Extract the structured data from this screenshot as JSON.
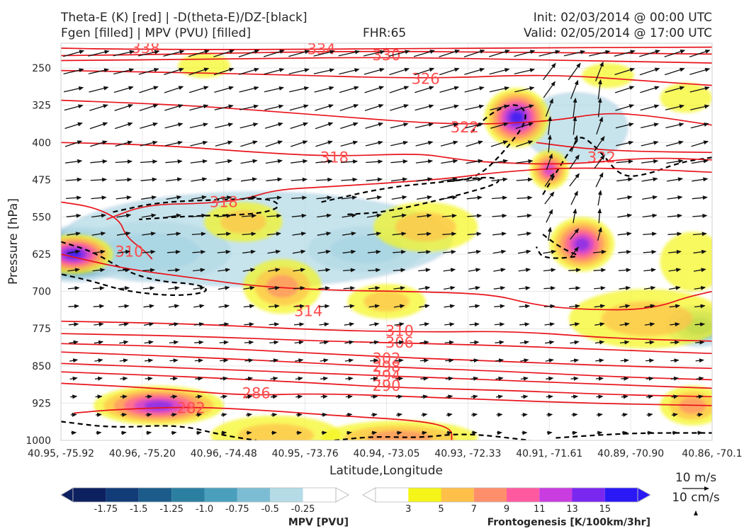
{
  "header": {
    "title_left_line1": "Theta-E (K) [red] | -D(theta-E)/DZ-[black]",
    "title_left_line2": "Fgen [filled] | MPV (PVU) [filled]",
    "fhr": "FHR:65",
    "init": "Init: 02/03/2014 @ 00:00 UTC",
    "valid": "Valid: 02/05/2014 @ 17:00 UTC"
  },
  "colors": {
    "theta_e": "#e8141c",
    "dthetae_dz": "#000000",
    "mpv_outline": "#9fb5d6",
    "mpv_fill": [
      "#0d2060",
      "#123c78",
      "#1b5c8a",
      "#2b7fa0",
      "#4a9fbc",
      "#7dbdd3",
      "#b4dbe6",
      "#ffffff"
    ],
    "fgen_fill": [
      "#ffffff",
      "#f5f519",
      "#ffc04a",
      "#ff8f6a",
      "#ff5aa0",
      "#c83ce0",
      "#7a28f0",
      "#2a18f5"
    ]
  },
  "chart_data": {
    "type": "cross-section",
    "xlabel": "Latitude,Longitude",
    "ylabel": "Pressure [hPa]",
    "x_ticks": [
      "40.95, -75.92",
      "40.96, -75.20",
      "40.96, -74.48",
      "40.95, -73.76",
      "40.94, -73.05",
      "40.93, -72.33",
      "40.91, -71.61",
      "40.89, -70.90",
      "40.86, -70.1"
    ],
    "y_ticks": [
      250,
      325,
      400,
      475,
      550,
      625,
      700,
      775,
      850,
      925,
      1000
    ],
    "ylim": [
      1000,
      200
    ],
    "xlim": [
      0,
      1
    ],
    "theta_e_contours": [
      {
        "label": "338",
        "pts": [
          [
            0,
            210
          ],
          [
            0.08,
            212
          ],
          [
            0.3,
            213
          ],
          [
            0.6,
            210
          ],
          [
            1,
            208
          ]
        ],
        "lab": [
          0.13,
          210
        ]
      },
      {
        "label": "334",
        "pts": [
          [
            0,
            225
          ],
          [
            0.2,
            222
          ],
          [
            0.42,
            216
          ],
          [
            0.7,
            218
          ],
          [
            1,
            222
          ]
        ],
        "lab": [
          0.4,
          212
        ]
      },
      {
        "label": "330",
        "pts": [
          [
            0,
            235
          ],
          [
            0.25,
            232
          ],
          [
            0.5,
            228
          ],
          [
            0.75,
            234
          ],
          [
            1,
            240
          ]
        ],
        "lab": [
          0.5,
          224
        ]
      },
      {
        "label": "326",
        "pts": [
          [
            0,
            255
          ],
          [
            0.3,
            262
          ],
          [
            0.56,
            272
          ],
          [
            0.75,
            262
          ],
          [
            0.92,
            278
          ],
          [
            1,
            285
          ]
        ],
        "lab": [
          0.56,
          272
        ]
      },
      {
        "label": "322",
        "pts": [
          [
            0,
            315
          ],
          [
            0.2,
            325
          ],
          [
            0.4,
            345
          ],
          [
            0.6,
            365
          ],
          [
            0.75,
            358
          ],
          [
            0.83,
            340
          ],
          [
            0.9,
            345
          ],
          [
            1,
            365
          ]
        ],
        "lab": [
          0.62,
          370
        ]
      },
      {
        "label": "322",
        "pts": [
          [
            0.73,
            400
          ],
          [
            0.8,
            412
          ],
          [
            0.88,
            418
          ],
          [
            1,
            420
          ]
        ],
        "lab": [
          0.83,
          430
        ]
      },
      {
        "label": "318",
        "pts": [
          [
            0,
            400
          ],
          [
            0.15,
            405
          ],
          [
            0.3,
            420
          ],
          [
            0.42,
            428
          ],
          [
            0.55,
            422
          ],
          [
            0.6,
            432
          ],
          [
            0.65,
            440
          ],
          [
            0.78,
            445
          ],
          [
            0.9,
            430
          ],
          [
            1,
            435
          ]
        ],
        "lab": [
          0.42,
          430
        ]
      },
      {
        "label": "318",
        "pts": [
          [
            0.07,
            555
          ],
          [
            0.13,
            525
          ],
          [
            0.22,
            523
          ],
          [
            0.28,
            515
          ],
          [
            0.33,
            495
          ],
          [
            0.4,
            490
          ],
          [
            0.52,
            480
          ],
          [
            0.6,
            472
          ],
          [
            0.67,
            460
          ],
          [
            0.78,
            450
          ],
          [
            0.92,
            455
          ],
          [
            1,
            460
          ]
        ],
        "lab": [
          0.25,
          520
        ]
      },
      {
        "label": "310",
        "pts": [
          [
            0,
            520
          ],
          [
            0.05,
            530
          ],
          [
            0.09,
            555
          ],
          [
            0.1,
            590
          ],
          [
            0.13,
            620
          ],
          [
            0.14,
            635
          ]
        ],
        "lab": [
          0.105,
          620
        ]
      },
      {
        "label": "314",
        "pts": [
          [
            0,
            625
          ],
          [
            0.1,
            655
          ],
          [
            0.2,
            672
          ],
          [
            0.3,
            690
          ],
          [
            0.42,
            698
          ],
          [
            0.53,
            700
          ],
          [
            0.66,
            705
          ],
          [
            0.72,
            725
          ],
          [
            0.78,
            735
          ],
          [
            0.87,
            738
          ],
          [
            0.92,
            730
          ],
          [
            0.96,
            712
          ],
          [
            1,
            700
          ]
        ],
        "lab": [
          0.38,
          740
        ]
      },
      {
        "label": "310",
        "pts": [
          [
            0,
            760
          ],
          [
            0.2,
            765
          ],
          [
            0.4,
            778
          ],
          [
            0.56,
            782
          ],
          [
            0.7,
            780
          ],
          [
            0.85,
            795
          ],
          [
            1,
            800
          ]
        ],
        "lab": [
          0.52,
          780
        ]
      },
      {
        "label": "306",
        "pts": [
          [
            0,
            785
          ],
          [
            0.2,
            790
          ],
          [
            0.4,
            800
          ],
          [
            0.56,
            805
          ],
          [
            0.7,
            810
          ],
          [
            0.85,
            818
          ],
          [
            1,
            825
          ]
        ],
        "lab": [
          0.52,
          803
        ]
      },
      {
        "label": "302",
        "pts": [
          [
            0,
            805
          ],
          [
            0.2,
            812
          ],
          [
            0.4,
            825
          ],
          [
            0.52,
            833
          ],
          [
            0.7,
            842
          ],
          [
            0.85,
            850
          ],
          [
            1,
            855
          ]
        ],
        "lab": [
          0.5,
          835
        ]
      },
      {
        "label": "298",
        "pts": [
          [
            0,
            822
          ],
          [
            0.2,
            832
          ],
          [
            0.4,
            845
          ],
          [
            0.5,
            852
          ],
          [
            0.7,
            862
          ],
          [
            0.85,
            872
          ],
          [
            1,
            878
          ]
        ],
        "lab": [
          0.5,
          852
        ]
      },
      {
        "label": "294",
        "pts": [
          [
            0,
            845
          ],
          [
            0.2,
            855
          ],
          [
            0.4,
            865
          ],
          [
            0.5,
            870
          ],
          [
            0.7,
            880
          ],
          [
            0.85,
            888
          ],
          [
            1,
            895
          ]
        ],
        "lab": [
          0.5,
          870
        ]
      },
      {
        "label": "290",
        "pts": [
          [
            0,
            862
          ],
          [
            0.2,
            872
          ],
          [
            0.4,
            885
          ],
          [
            0.5,
            893
          ],
          [
            0.7,
            900
          ],
          [
            0.85,
            908
          ],
          [
            1,
            912
          ]
        ],
        "lab": [
          0.5,
          890
        ]
      },
      {
        "label": "286",
        "pts": [
          [
            0,
            885
          ],
          [
            0.15,
            895
          ],
          [
            0.28,
            910
          ],
          [
            0.4,
            905
          ],
          [
            0.6,
            915
          ],
          [
            0.8,
            925
          ],
          [
            1,
            930
          ]
        ],
        "lab": [
          0.3,
          905
        ]
      },
      {
        "label": "282",
        "pts": [
          [
            0.02,
            945
          ],
          [
            0.08,
            938
          ],
          [
            0.2,
            932
          ],
          [
            0.32,
            940
          ],
          [
            0.42,
            950
          ],
          [
            0.55,
            960
          ],
          [
            0.6,
            975
          ],
          [
            0.6,
            1000
          ]
        ],
        "lab": [
          0.2,
          935
        ]
      }
    ],
    "dthetae_dz_contours": [
      [
        [
          0.08,
          540
        ],
        [
          0.15,
          520
        ],
        [
          0.25,
          515
        ],
        [
          0.32,
          512
        ],
        [
          0.34,
          530
        ],
        [
          0.3,
          545
        ],
        [
          0.2,
          548
        ],
        [
          0.12,
          555
        ]
      ],
      [
        [
          0.4,
          520
        ],
        [
          0.5,
          490
        ],
        [
          0.6,
          478
        ],
        [
          0.66,
          468
        ],
        [
          0.68,
          480
        ],
        [
          0.6,
          510
        ],
        [
          0.5,
          540
        ],
        [
          0.44,
          545
        ]
      ],
      [
        [
          0,
          600
        ],
        [
          0.05,
          620
        ],
        [
          0.1,
          660
        ],
        [
          0.15,
          680
        ],
        [
          0.21,
          685
        ],
        [
          0.23,
          700
        ],
        [
          0.18,
          710
        ],
        [
          0.1,
          700
        ],
        [
          0.05,
          680
        ],
        [
          0,
          665
        ]
      ],
      [
        [
          0.63,
          380
        ],
        [
          0.66,
          340
        ],
        [
          0.7,
          318
        ],
        [
          0.72,
          350
        ],
        [
          0.68,
          420
        ],
        [
          0.64,
          470
        ],
        [
          0.6,
          478
        ]
      ],
      [
        [
          0.74,
          505
        ],
        [
          0.77,
          440
        ],
        [
          0.79,
          400
        ],
        [
          0.8,
          385
        ],
        [
          0.83,
          420
        ],
        [
          0.86,
          470
        ],
        [
          0.9,
          465
        ],
        [
          0.95,
          440
        ],
        [
          1,
          430
        ]
      ],
      [
        [
          0.74,
          585
        ],
        [
          0.76,
          605
        ],
        [
          0.78,
          620
        ],
        [
          0.8,
          630
        ],
        [
          0.74,
          635
        ],
        [
          0.73,
          610
        ]
      ],
      [
        [
          0,
          962
        ],
        [
          0.08,
          975
        ],
        [
          0.18,
          968
        ],
        [
          0.25,
          990
        ],
        [
          0.3,
          1000
        ]
      ],
      [
        [
          0.42,
          1000
        ],
        [
          0.48,
          992
        ],
        [
          0.55,
          995
        ],
        [
          0.62,
          985
        ],
        [
          0.72,
          1000
        ]
      ],
      [
        [
          0.76,
          995
        ],
        [
          0.84,
          988
        ],
        [
          0.9,
          985
        ],
        [
          1,
          985
        ]
      ]
    ],
    "mpv": {
      "levels": [
        -1.75,
        -1.5,
        -1.25,
        -1.0,
        -0.75,
        -0.5,
        -0.25
      ],
      "blobs": [
        {
          "cx": 0.02,
          "cy": 625,
          "rx": 0.09,
          "ry": 55,
          "min": -2.0
        },
        {
          "cx": 0.14,
          "cy": 620,
          "rx": 0.12,
          "ry": 60,
          "min": -0.6
        },
        {
          "cx": 0.47,
          "cy": 615,
          "rx": 0.09,
          "ry": 45,
          "min": -0.6
        },
        {
          "cx": 0.79,
          "cy": 370,
          "rx": 0.08,
          "ry": 70,
          "min": -0.5
        },
        {
          "cx": 0.98,
          "cy": 770,
          "rx": 0.05,
          "ry": 40,
          "min": -0.8
        },
        {
          "cx": 0.3,
          "cy": 595,
          "rx": 0.3,
          "ry": 95,
          "min": -0.3
        }
      ]
    },
    "fgen": {
      "levels": [
        3,
        5,
        7,
        9,
        11,
        13,
        15
      ],
      "blobs": [
        {
          "cx": 0.7,
          "cy": 350,
          "rx": 0.05,
          "ry": 60,
          "max": 16
        },
        {
          "cx": 0.8,
          "cy": 605,
          "rx": 0.05,
          "ry": 55,
          "max": 13
        },
        {
          "cx": 0.02,
          "cy": 625,
          "rx": 0.06,
          "ry": 40,
          "max": 15
        },
        {
          "cx": 0.15,
          "cy": 930,
          "rx": 0.1,
          "ry": 40,
          "max": 14
        },
        {
          "cx": 0.34,
          "cy": 690,
          "rx": 0.06,
          "ry": 55,
          "max": 8
        },
        {
          "cx": 0.5,
          "cy": 720,
          "rx": 0.06,
          "ry": 35,
          "max": 6
        },
        {
          "cx": 0.28,
          "cy": 560,
          "rx": 0.06,
          "ry": 40,
          "max": 5
        },
        {
          "cx": 0.56,
          "cy": 570,
          "rx": 0.08,
          "ry": 50,
          "max": 5
        },
        {
          "cx": 0.75,
          "cy": 455,
          "rx": 0.03,
          "ry": 40,
          "max": 12
        },
        {
          "cx": 0.9,
          "cy": 755,
          "rx": 0.12,
          "ry": 60,
          "max": 6
        },
        {
          "cx": 0.97,
          "cy": 930,
          "rx": 0.05,
          "ry": 40,
          "max": 8
        },
        {
          "cx": 0.33,
          "cy": 990,
          "rx": 0.1,
          "ry": 40,
          "max": 6
        },
        {
          "cx": 0.52,
          "cy": 995,
          "rx": 0.12,
          "ry": 35,
          "max": 7
        },
        {
          "cx": 0.84,
          "cy": 265,
          "rx": 0.04,
          "ry": 25,
          "max": 4
        },
        {
          "cx": 0.22,
          "cy": 245,
          "rx": 0.04,
          "ry": 25,
          "max": 3
        },
        {
          "cx": 0.96,
          "cy": 310,
          "rx": 0.04,
          "ry": 30,
          "max": 4
        },
        {
          "cx": 0.97,
          "cy": 640,
          "rx": 0.05,
          "ry": 60,
          "max": 4
        }
      ]
    },
    "wind_reference": {
      "label1": "10 m/s",
      "label2": "10 cm/s"
    }
  },
  "colorbars": {
    "mpv": {
      "title": "MPV [PVU]",
      "labels": [
        "-1.75",
        "-1.5",
        "-1.25",
        "-1.0",
        "-0.75",
        "-0.5",
        "-0.25"
      ]
    },
    "fgen": {
      "title": "Frontogenesis [K/100km/3hr]",
      "labels": [
        "3",
        "5",
        "7",
        "9",
        "11",
        "13",
        "15"
      ]
    }
  }
}
